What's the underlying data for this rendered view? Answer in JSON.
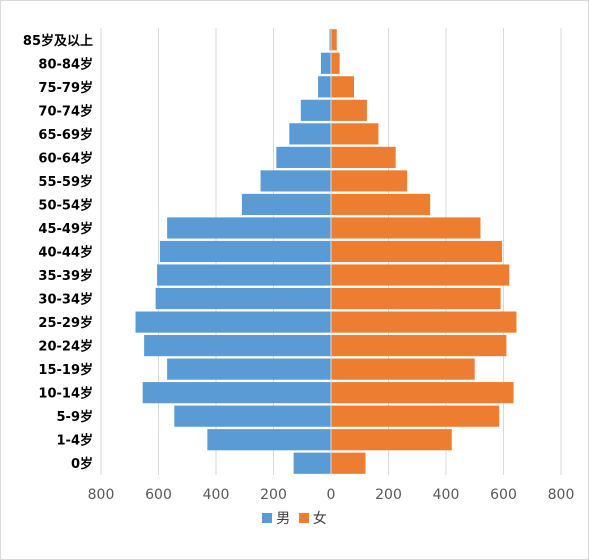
{
  "chart_data": {
    "type": "bar",
    "orientation": "horizontal-population-pyramid",
    "categories": [
      "85岁及以上",
      "80-84岁",
      "75-79岁",
      "70-74岁",
      "65-69岁",
      "60-64岁",
      "55-59岁",
      "50-54岁",
      "45-49岁",
      "40-44岁",
      "35-39岁",
      "30-34岁",
      "25-29岁",
      "20-24岁",
      "15-19岁",
      "10-14岁",
      "5-9岁",
      "1-4岁",
      "0岁"
    ],
    "series": [
      {
        "name": "男",
        "color": "#5b9bd5",
        "values": [
          -5,
          -35,
          -45,
          -105,
          -145,
          -190,
          -245,
          -310,
          -570,
          -595,
          -605,
          -610,
          -680,
          -650,
          -570,
          -655,
          -545,
          -430,
          -130
        ]
      },
      {
        "name": "女",
        "color": "#ed7d31",
        "values": [
          20,
          30,
          80,
          125,
          165,
          225,
          265,
          345,
          520,
          595,
          620,
          590,
          645,
          610,
          500,
          635,
          585,
          420,
          120
        ]
      }
    ],
    "xlim": [
      -800,
      800
    ],
    "x_ticks": [
      -800,
      -600,
      -400,
      -200,
      0,
      200,
      400,
      600,
      800
    ],
    "x_tick_labels": [
      "800",
      "600",
      "400",
      "200",
      "0",
      "200",
      "400",
      "600",
      "800"
    ],
    "grid": true,
    "legend": "bottom",
    "title": "",
    "xlabel": "",
    "ylabel": ""
  }
}
